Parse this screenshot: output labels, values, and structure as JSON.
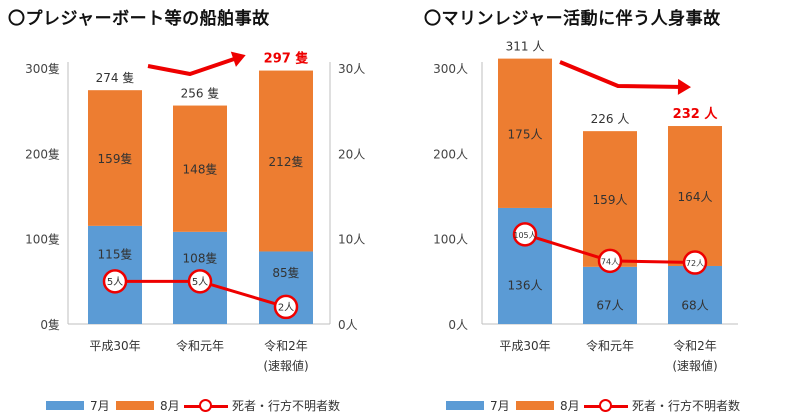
{
  "colors": {
    "july": "#5b9bd5",
    "august": "#ed7d31",
    "line": "#ee0000",
    "axis": "#bfbfbf",
    "trend_arrow": "#ee0000"
  },
  "icons": {
    "title_marker": "circle-outline",
    "trend": "red-arrow"
  },
  "left": {
    "title": "〇プレジャーボート等の船舶事故",
    "legend": {
      "july": "7月",
      "august": "8月",
      "line": "死者・行方不明者数"
    },
    "chart_data": {
      "type": "bar",
      "stacked": true,
      "title": "〇プレジャーボート等の船舶事故",
      "categories": [
        "平成30年",
        "令和元年",
        "令和2年"
      ],
      "category_sublabels": [
        "",
        "",
        "(速報値)"
      ],
      "series": [
        {
          "name": "7月",
          "values": [
            115,
            108,
            85
          ],
          "labels": [
            "115隻",
            "108隻",
            "85隻"
          ]
        },
        {
          "name": "8月",
          "values": [
            159,
            148,
            212
          ],
          "labels": [
            "159隻",
            "148隻",
            "212隻"
          ]
        }
      ],
      "totals": [
        274,
        256,
        297
      ],
      "total_labels": [
        "274 隻",
        "256 隻",
        "297 隻"
      ],
      "total_label_highlight": [
        false,
        false,
        true
      ],
      "yticks": [
        "0隻",
        "100隻",
        "200隻",
        "300隻"
      ],
      "ylim": [
        0,
        300
      ],
      "secondary": {
        "name": "死者・行方不明者数",
        "type": "line",
        "values": [
          5,
          5,
          2
        ],
        "labels": [
          "5人",
          "5人",
          "2人"
        ],
        "yticks": [
          "0人",
          "10人",
          "20人",
          "30人"
        ],
        "ylim": [
          0,
          30
        ]
      },
      "legend_position": "bottom",
      "grid": false
    }
  },
  "right": {
    "title": "〇マリンレジャー活動に伴う人身事故",
    "legend": {
      "july": "7月",
      "august": "8月",
      "line": "死者・行方不明者数"
    },
    "chart_data": {
      "type": "bar",
      "stacked": true,
      "title": "〇マリンレジャー活動に伴う人身事故",
      "categories": [
        "平成30年",
        "令和元年",
        "令和2年"
      ],
      "category_sublabels": [
        "",
        "",
        "(速報値)"
      ],
      "series": [
        {
          "name": "7月",
          "values": [
            136,
            67,
            68
          ],
          "labels": [
            "136人",
            "67人",
            "68人"
          ]
        },
        {
          "name": "8月",
          "values": [
            175,
            159,
            164
          ],
          "labels": [
            "175人",
            "159人",
            "164人"
          ]
        }
      ],
      "totals": [
        311,
        226,
        232
      ],
      "total_labels": [
        "311 人",
        "226 人",
        "232 人"
      ],
      "total_label_highlight": [
        false,
        false,
        true
      ],
      "yticks": [
        "0人",
        "100人",
        "200人",
        "300人"
      ],
      "ylim": [
        0,
        300
      ],
      "line": {
        "name": "死者・行方不明者数",
        "values": [
          105,
          74,
          72
        ],
        "labels": [
          "105人",
          "74人",
          "72人"
        ]
      },
      "legend_position": "bottom",
      "grid": false
    }
  }
}
